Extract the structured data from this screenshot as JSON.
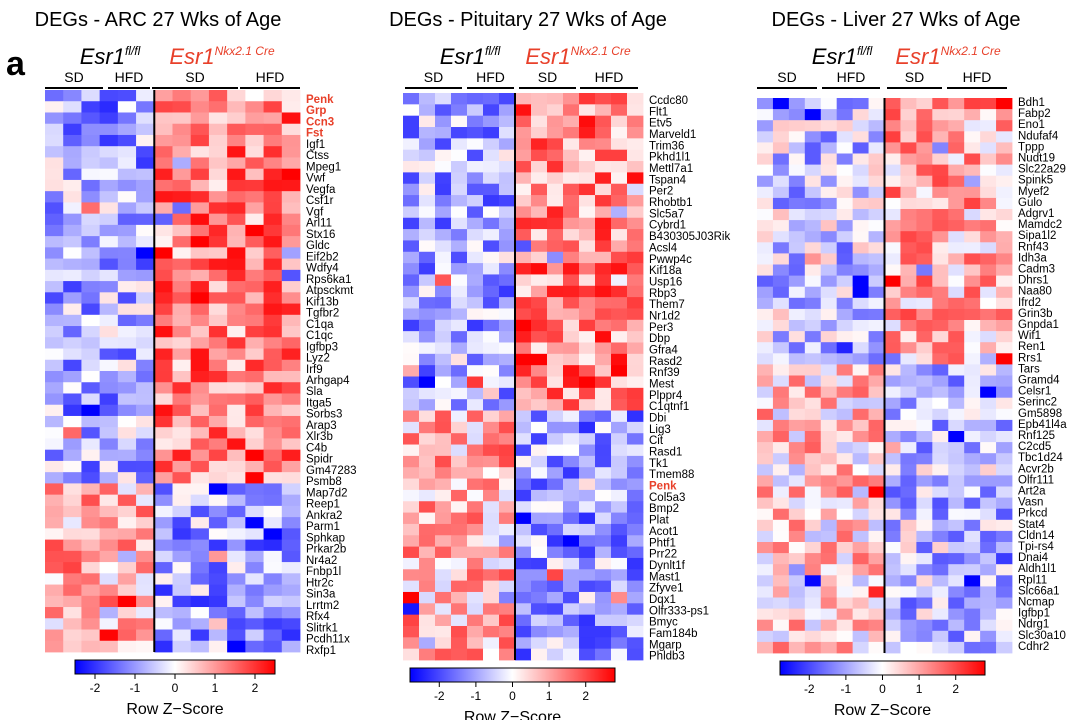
{
  "panel_label": "a",
  "colors": {
    "low": "#0000ff",
    "mid": "#ffffff",
    "high": "#ff0000",
    "highlight": "#e8402a"
  },
  "chart_data": [
    {
      "type": "heatmap",
      "title": "DEGs - ARC 27 Wks of Age",
      "genotypes": [
        {
          "name": "Esr1",
          "sup": "fl/fl",
          "highlight": false
        },
        {
          "name": "Esr1",
          "sup": "Nkx2.1 Cre",
          "highlight": true
        }
      ],
      "groups": [
        "SD",
        "HFD",
        "SD",
        "HFD"
      ],
      "columns_per_group": [
        3,
        3,
        4,
        4
      ],
      "divider_after_column": 6,
      "highlighted_genes": [
        "Penk",
        "Grp",
        "Ccn3",
        "Fst"
      ],
      "genes": [
        "Penk",
        "Grp",
        "Ccn3",
        "Fst",
        "Igf1",
        "Ctss",
        "Mpeg1",
        "Vwf",
        "Vegfa",
        "Csf1r",
        "Vgf",
        "Arl11",
        "Stx16",
        "Gldc",
        "Eif2b2",
        "Wdfy4",
        "Rps6ka1",
        "Atpsckmt",
        "Kif13b",
        "Tgfbr2",
        "C1qa",
        "C1qc",
        "Igfbp3",
        "Lyz2",
        "Irf9",
        "Arhgap4",
        "Sla",
        "Itga5",
        "Sorbs3",
        "Arap3",
        "Xlr3b",
        "C4b",
        "Spidr",
        "Gm47283",
        "Psmb8",
        "Map7d2",
        "Reep1",
        "Ankra2",
        "Parm1",
        "Sphkap",
        "Prkar2b",
        "Nr4a2",
        "Fnbp1l",
        "Htr2c",
        "Sin3a",
        "Lrrtm2",
        "Rfx4",
        "Slitrk1",
        "Pcdh11x",
        "Rxfp1"
      ],
      "split_row": 35,
      "seed": 11,
      "colorbar": {
        "min": -2.5,
        "max": 2.5,
        "ticks": [
          -2,
          -1,
          0,
          1,
          2
        ],
        "label": "Row Z−Score"
      }
    },
    {
      "type": "heatmap",
      "title": "DEGs - Pituitary  27 Wks of Age",
      "genotypes": [
        {
          "name": "Esr1",
          "sup": "fl/fl",
          "highlight": false
        },
        {
          "name": "Esr1",
          "sup": "Nkx2.1 Cre",
          "highlight": true
        }
      ],
      "groups": [
        "SD",
        "HFD",
        "SD",
        "HFD"
      ],
      "columns_per_group": [
        4,
        3,
        4,
        4
      ],
      "divider_after_column": 7,
      "highlighted_genes": [
        "Penk"
      ],
      "genes": [
        "Ccdc80",
        "Flt1",
        "Etv5",
        "Marveld1",
        "Trim36",
        "Pkhd1l1",
        "Mettl7a1",
        "Tspan4",
        "Per2",
        "Rhobtb1",
        "Slc5a7",
        "Cybrd1",
        "B430305J03Rik",
        "Acsl4",
        "Pwwp4c",
        "Kif18a",
        "Usp16",
        "Rbp3",
        "Them7",
        "Nr1d2",
        "Per3",
        "Dbp",
        "Gfra4",
        "Rasd2",
        "Rnf39",
        "Mest",
        "Plppr4",
        "C1qtnf1",
        "Dbi",
        "Lig3",
        "Cit",
        "Rasd1",
        "Tk1",
        "Tmem88",
        "Penk",
        "Col5a3",
        "Bmp2",
        "Plat",
        "Acot1",
        "Phtf1",
        "Prr22",
        "Dynlt1f",
        "Mast1",
        "Zfyve1",
        "Dqx1",
        "Olfr333-ps1",
        "Bmyc",
        "Fam184b",
        "Mgarp",
        "Phldb3"
      ],
      "split_row": 28,
      "seed": 23,
      "colorbar": {
        "min": -2.8,
        "max": 2.8,
        "ticks": [
          -2,
          -1,
          0,
          1,
          2
        ],
        "label": "Row Z−Score"
      }
    },
    {
      "type": "heatmap",
      "title": "DEGs - Liver  27 Wks of Age",
      "genotypes": [
        {
          "name": "Esr1",
          "sup": "fl/fl",
          "highlight": false
        },
        {
          "name": "Esr1",
          "sup": "Nkx2.1 Cre",
          "highlight": true
        }
      ],
      "groups": [
        "SD",
        "HFD",
        "SD",
        "HFD"
      ],
      "columns_per_group": [
        4,
        4,
        4,
        4
      ],
      "divider_after_column": 8,
      "highlighted_genes": [],
      "genes": [
        "Bdh1",
        "Fabp2",
        "Eno1",
        "Ndufaf4",
        "Tppp",
        "Nudt19",
        "Slc22a29",
        "Spink5",
        "Myef2",
        "Gulo",
        "Adgrv1",
        "Mamdc2",
        "Sipa1l2",
        "Rnf43",
        "Idh3a",
        "Cadm3",
        "Dhrs1",
        "Naa80",
        "Ifrd2",
        "Grin3b",
        "Gnpda1",
        "Wif1",
        "Ren1",
        "Rrs1",
        "Tars",
        "Gramd4",
        "Celsr1",
        "Serinc2",
        "Gm5898",
        "Epb41l4a",
        "Rnf125",
        "C2cd5",
        "Tbc1d24",
        "Acvr2b",
        "Olfr111",
        "Art2a",
        "Vasn",
        "Prkcd",
        "Stat4",
        "Cldn14",
        "Tpi-rs4",
        "Dnai4",
        "Aldh1l1",
        "Rpl11",
        "Slc66a1",
        "Ncmap",
        "Igfbp1",
        "Ndrg1",
        "Slc30a10",
        "Cdhr2"
      ],
      "split_row": 24,
      "seed": 37,
      "colorbar": {
        "min": -2.8,
        "max": 2.8,
        "ticks": [
          -2,
          -1,
          0,
          1,
          2
        ],
        "label": "Row Z−Score"
      }
    }
  ]
}
